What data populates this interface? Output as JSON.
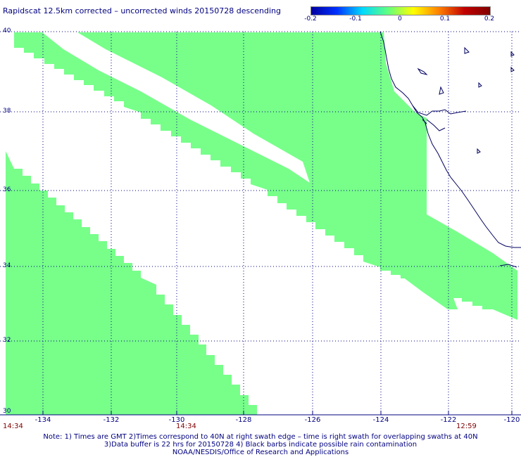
{
  "title": "Rapidscat 12.5km corrected – uncorrected winds 20150728 descending",
  "colorbar": {
    "labels": [
      "-0.2",
      "-0.1",
      "0",
      "0.1",
      "0.2"
    ],
    "stops": [
      "#0000a0",
      "#0030ff",
      "#00d8ff",
      "#60ff80",
      "#ffff00",
      "#ff8000",
      "#c00000",
      "#800000"
    ]
  },
  "map": {
    "lat_labels": [
      "40",
      "38",
      "36",
      "34",
      "32",
      "30"
    ],
    "lon_labels": [
      "-134",
      "-132",
      "-130",
      "-128",
      "-126",
      "-124",
      "-122",
      "-120"
    ],
    "swath_color": "#77ff8a",
    "coast_color": "#000060",
    "grid_color": "#000080"
  },
  "times": [
    "14:34",
    "14:34",
    "12:59"
  ],
  "notes": [
    "Note: 1) Times are GMT 2)Times correspond to 40N at right swath edge – time is right swath for overlapping swaths at 40N",
    "3)Data buffer is 22 hrs for 20150728 4) Black barbs indicate possible rain contamination",
    "NOAA/NESDIS/Office of Research and Applications"
  ]
}
